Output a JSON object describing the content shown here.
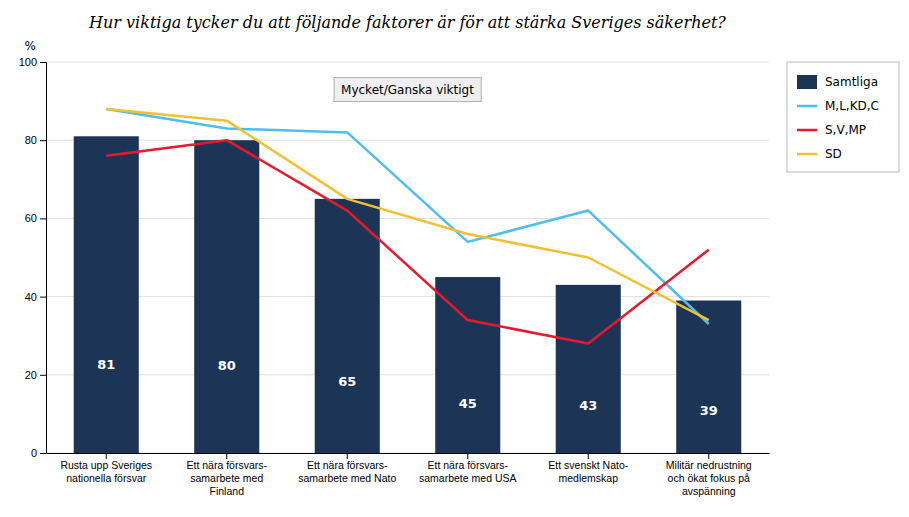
{
  "chart_data": {
    "type": "bar",
    "title": "Hur viktiga tycker du att följande faktorer är för att stärka Sveriges säkerhet?",
    "y_label": "%",
    "annotation": "Mycket/Ganska viktigt",
    "categories": [
      "Rusta upp Sveriges\nnationella försvar",
      "Ett nära försvars-\nsamarbete med\nFinland",
      "Ett nära försvars-\nsamarbete med Nato",
      "Ett nära försvars-\nsamarbete med USA",
      "Ett svenskt Nato-\nmedlemskap",
      "Militär nedrustning\noch ökat fokus på\navspänning"
    ],
    "series": [
      {
        "name": "Samtliga",
        "type": "bar",
        "color": "#1c3557",
        "values": [
          81,
          80,
          65,
          45,
          43,
          39
        ]
      },
      {
        "name": "M,L,KD,C",
        "type": "line",
        "color": "#4dbfee",
        "values": [
          88,
          83,
          82,
          54,
          62,
          33
        ]
      },
      {
        "name": "S,V,MP",
        "type": "line",
        "color": "#e8192c",
        "values": [
          76,
          80,
          62,
          34,
          28,
          52
        ]
      },
      {
        "name": "SD",
        "type": "line",
        "color": "#f0c030",
        "values": [
          88,
          85,
          65,
          56,
          50,
          34
        ]
      }
    ],
    "ylim": [
      0,
      100
    ],
    "yticks": [
      0,
      20,
      40,
      60,
      80,
      100
    ],
    "grid": true,
    "data_labels": true,
    "legend": "right"
  }
}
